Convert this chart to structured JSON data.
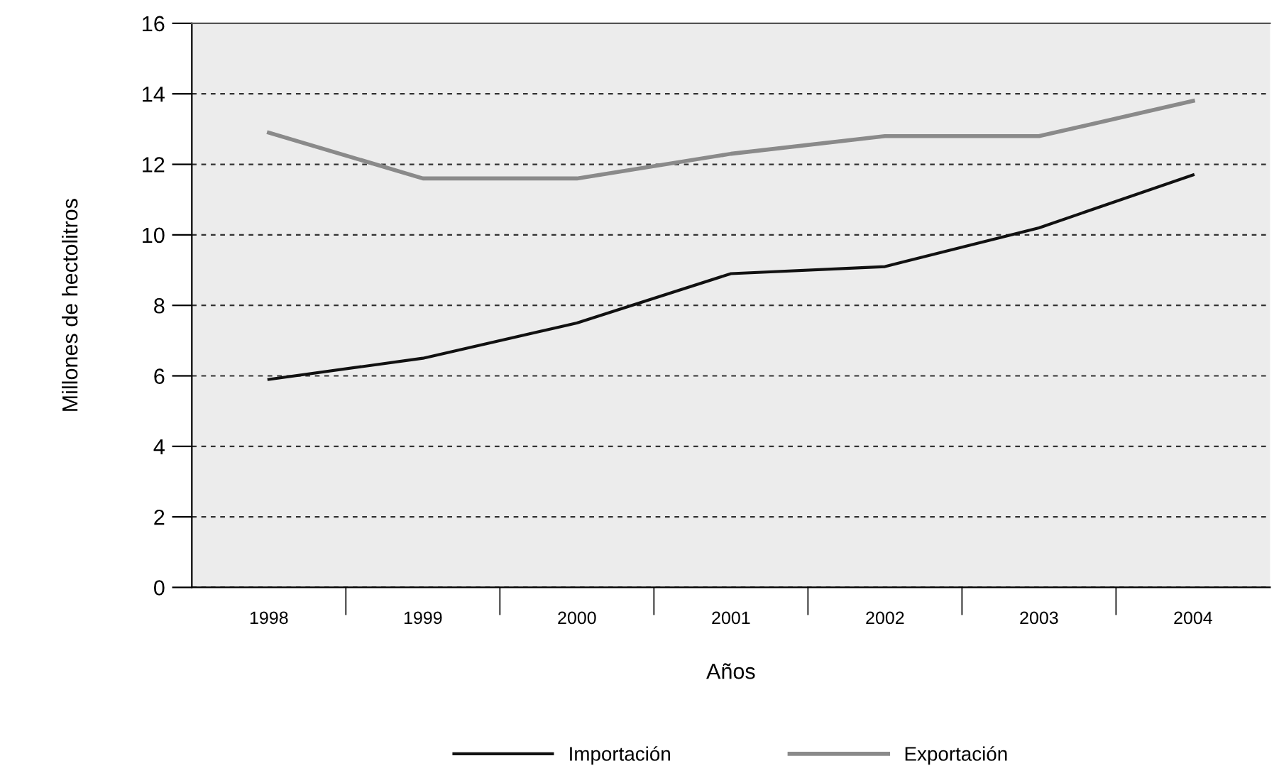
{
  "chart_data": {
    "type": "line",
    "xlabel": "Años",
    "ylabel": "Millones de hectolitros",
    "categories": [
      "1998",
      "1999",
      "2000",
      "2001",
      "2002",
      "2003",
      "2004"
    ],
    "series": [
      {
        "name": "Importación",
        "color": "#111111",
        "values": [
          5.9,
          6.5,
          7.5,
          8.9,
          9.1,
          10.2,
          11.7
        ]
      },
      {
        "name": "Exportación",
        "color": "#8a8a8a",
        "values": [
          12.9,
          11.6,
          11.6,
          12.3,
          12.8,
          12.8,
          13.8
        ]
      }
    ],
    "ylim": [
      0,
      16
    ],
    "yticks": [
      0,
      2,
      4,
      6,
      8,
      10,
      12,
      14,
      16
    ],
    "grid": "y",
    "legend": "bottom",
    "line_style": "solid",
    "marker": "none"
  }
}
